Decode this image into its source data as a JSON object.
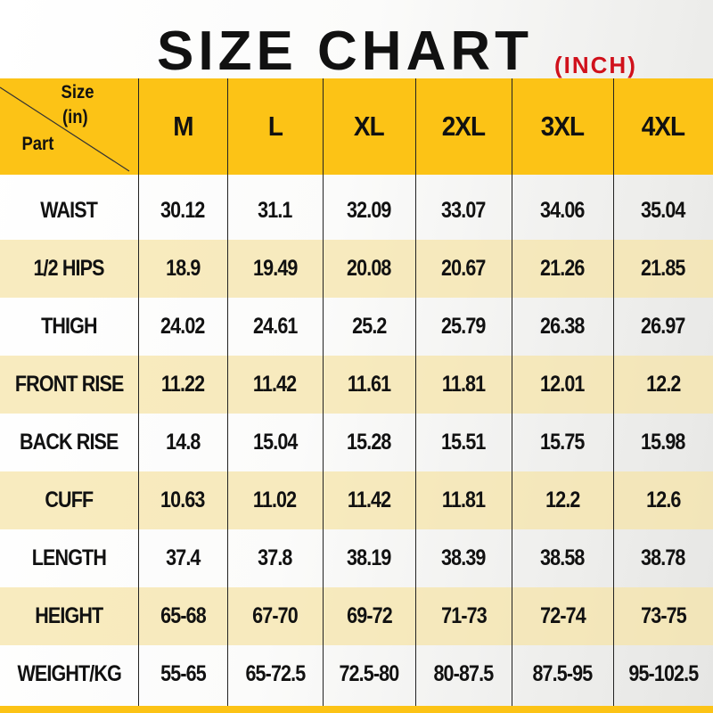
{
  "title": {
    "main": "SIZE CHART",
    "unit": "(INCH)"
  },
  "colors": {
    "header": "#fcc316",
    "unit_text": "#d0111b",
    "alt_row": "#f6e4aa"
  },
  "corner": {
    "top": "Size",
    "top2": "(in)",
    "bottom": "Part"
  },
  "chart_data": {
    "type": "table",
    "columns": [
      "M",
      "L",
      "XL",
      "2XL",
      "3XL",
      "4XL"
    ],
    "rows": [
      {
        "label": "WAIST",
        "values": [
          "30.12",
          "31.1",
          "32.09",
          "33.07",
          "34.06",
          "35.04"
        ]
      },
      {
        "label": "1/2 HIPS",
        "values": [
          "18.9",
          "19.49",
          "20.08",
          "20.67",
          "21.26",
          "21.85"
        ]
      },
      {
        "label": "THIGH",
        "values": [
          "24.02",
          "24.61",
          "25.2",
          "25.79",
          "26.38",
          "26.97"
        ]
      },
      {
        "label": "FRONT RISE",
        "values": [
          "11.22",
          "11.42",
          "11.61",
          "11.81",
          "12.01",
          "12.2"
        ]
      },
      {
        "label": "BACK RISE",
        "values": [
          "14.8",
          "15.04",
          "15.28",
          "15.51",
          "15.75",
          "15.98"
        ]
      },
      {
        "label": "CUFF",
        "values": [
          "10.63",
          "11.02",
          "11.42",
          "11.81",
          "12.2",
          "12.6"
        ]
      },
      {
        "label": "LENGTH",
        "values": [
          "37.4",
          "37.8",
          "38.19",
          "38.39",
          "38.58",
          "38.78"
        ]
      },
      {
        "label": "HEIGHT",
        "values": [
          "65-68",
          "67-70",
          "69-72",
          "71-73",
          "72-74",
          "73-75"
        ]
      },
      {
        "label": "WEIGHT/KG",
        "values": [
          "55-65",
          "65-72.5",
          "72.5-80",
          "80-87.5",
          "87.5-95",
          "95-102.5"
        ]
      }
    ]
  }
}
